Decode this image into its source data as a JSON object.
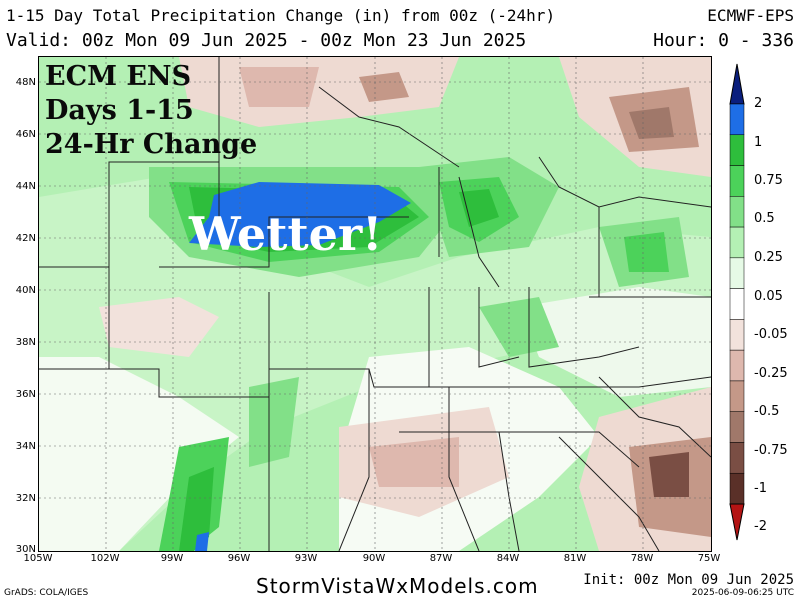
{
  "header": {
    "title": "1-15 Day Total Precipitation Change (in) from 00z (-24hr)",
    "model": "ECMWF-EPS",
    "valid": "Valid: 00z Mon 09 Jun 2025 - 00z Mon 23 Jun 2025",
    "hour": "Hour: 0 - 336"
  },
  "overlay": {
    "line1": "ECM ENS",
    "line2": "Days 1-15",
    "line3": "24-Hr Change",
    "annotation": "Wetter!"
  },
  "axes": {
    "lat_labels": [
      "48N",
      "46N",
      "44N",
      "42N",
      "40N",
      "38N",
      "36N",
      "34N",
      "32N",
      "30N"
    ],
    "lon_labels": [
      "105W",
      "102W",
      "99W",
      "96W",
      "93W",
      "90W",
      "87W",
      "84W",
      "81W",
      "78W",
      "75W"
    ]
  },
  "legend": {
    "labels": [
      "2",
      "1",
      "0.75",
      "0.5",
      "0.25",
      "0.05",
      "-0.05",
      "-0.25",
      "-0.5",
      "-0.75",
      "-1",
      "-2"
    ],
    "colors": [
      "#0a1e7d",
      "#1e6ee6",
      "#2ebe3c",
      "#4cd25a",
      "#82e088",
      "#b4f0b4",
      "#e6fae6",
      "#ffffff",
      "#f2e2dc",
      "#deb8ae",
      "#c49888",
      "#a0786a",
      "#7a4e44",
      "#5a3028",
      "#b41414"
    ]
  },
  "footer": {
    "site": "StormVistaWxModels.com",
    "grads": "GrADS: COLA/IGES",
    "init": "Init: 00z Mon 09 Jun 2025",
    "generated": "2025-06-09-06:25 UTC"
  }
}
